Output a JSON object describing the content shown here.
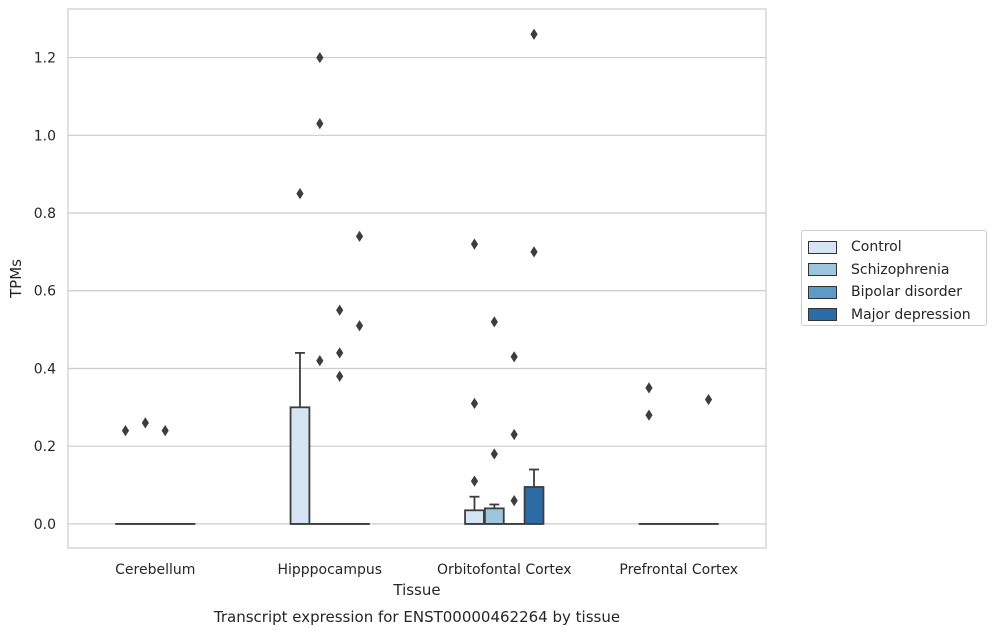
{
  "chart_data": {
    "type": "box",
    "title": "Transcript expression for ENST00000462264 by tissue",
    "xlabel": "Tissue",
    "ylabel": "TPMs",
    "ylim": [
      -0.062,
      1.325
    ],
    "yticks": [
      "0.0",
      "0.2",
      "0.4",
      "0.6",
      "0.8",
      "1.0",
      "1.2"
    ],
    "grid": true,
    "legend_position": "right",
    "categories": [
      "Cerebellum",
      "Hipppocampus",
      "Orbitofontal Cortex",
      "Prefrontal Cortex"
    ],
    "series": [
      {
        "name": "Control",
        "color": "#d6e5f4",
        "boxes": [
          {
            "q1": 0,
            "median": 0,
            "q3": 0,
            "whisker_low": 0,
            "whisker_high": 0,
            "outliers": [
              0.24
            ]
          },
          {
            "q1": 0,
            "median": 0,
            "q3": 0.3,
            "whisker_low": 0,
            "whisker_high": 0.44,
            "outliers": [
              0.85
            ]
          },
          {
            "q1": 0,
            "median": 0,
            "q3": 0.035,
            "whisker_low": 0,
            "whisker_high": 0.07,
            "outliers": [
              0.31,
              0.11,
              0.72
            ]
          },
          {
            "q1": 0,
            "median": 0,
            "q3": 0,
            "whisker_low": 0,
            "whisker_high": 0,
            "outliers": [
              0.35,
              0.28
            ]
          }
        ]
      },
      {
        "name": "Schizophrenia",
        "color": "#9dc5dd",
        "boxes": [
          {
            "q1": 0,
            "median": 0,
            "q3": 0,
            "whisker_low": 0,
            "whisker_high": 0,
            "outliers": [
              0.26
            ]
          },
          {
            "q1": 0,
            "median": 0,
            "q3": 0,
            "whisker_low": 0,
            "whisker_high": 0,
            "outliers": [
              0.42,
              1.03,
              1.2
            ]
          },
          {
            "q1": 0,
            "median": 0,
            "q3": 0.04,
            "whisker_low": 0,
            "whisker_high": 0.05,
            "outliers": [
              0.18,
              0.52
            ]
          },
          {
            "q1": 0,
            "median": 0,
            "q3": 0,
            "whisker_low": 0,
            "whisker_high": 0,
            "outliers": []
          }
        ]
      },
      {
        "name": "Bipolar disorder",
        "color": "#5a9bc7",
        "boxes": [
          {
            "q1": 0,
            "median": 0,
            "q3": 0,
            "whisker_low": 0,
            "whisker_high": 0,
            "outliers": [
              0.24
            ]
          },
          {
            "q1": 0,
            "median": 0,
            "q3": 0,
            "whisker_low": 0,
            "whisker_high": 0,
            "outliers": [
              0.38,
              0.44,
              0.55
            ]
          },
          {
            "q1": 0,
            "median": 0,
            "q3": 0,
            "whisker_low": 0,
            "whisker_high": 0,
            "outliers": [
              0.06,
              0.23,
              0.43
            ]
          },
          {
            "q1": 0,
            "median": 0,
            "q3": 0,
            "whisker_low": 0,
            "whisker_high": 0,
            "outliers": []
          }
        ]
      },
      {
        "name": "Major depression",
        "color": "#2b6ca4",
        "boxes": [
          {
            "q1": 0,
            "median": 0,
            "q3": 0,
            "whisker_low": 0,
            "whisker_high": 0,
            "outliers": []
          },
          {
            "q1": 0,
            "median": 0,
            "q3": 0,
            "whisker_low": 0,
            "whisker_high": 0,
            "outliers": [
              0.51,
              0.74
            ]
          },
          {
            "q1": 0,
            "median": 0,
            "q3": 0.095,
            "whisker_low": 0,
            "whisker_high": 0.14,
            "outliers": [
              0.7,
              1.26
            ]
          },
          {
            "q1": 0,
            "median": 0,
            "q3": 0,
            "whisker_low": 0,
            "whisker_high": 0,
            "outliers": [
              0.32
            ]
          }
        ]
      }
    ]
  }
}
